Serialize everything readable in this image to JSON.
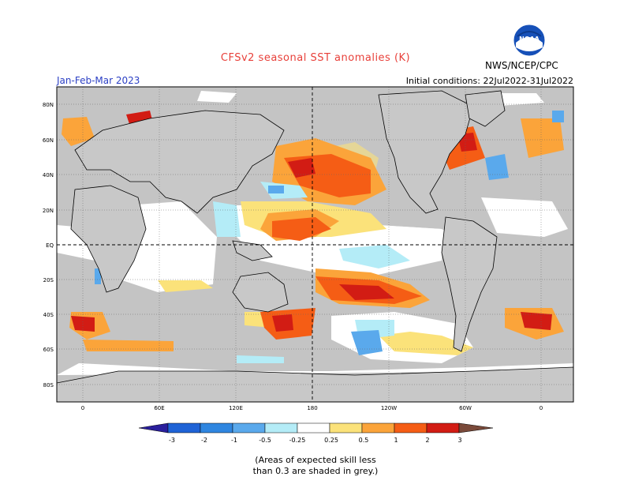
{
  "header": {
    "title": "CFSv2 seasonal SST anomalies (K)",
    "agency": "NWS/NCEP/CPC",
    "season": "Jan-Feb-Mar 2023",
    "initial_conditions": "Initial conditions: 22Jul2022-31Jul2022"
  },
  "logo": {
    "icon": "noaa-logo-icon",
    "text": "NOAA"
  },
  "axes": {
    "lat_labels": [
      "80N",
      "60N",
      "40N",
      "20N",
      "EQ",
      "20S",
      "40S",
      "60S",
      "80S"
    ],
    "lon_labels": [
      "0",
      "60E",
      "120E",
      "180",
      "120W",
      "60W",
      "0"
    ]
  },
  "colorbar": {
    "labels": [
      "-3",
      "-2",
      "-1",
      "-0.5",
      "-0.25",
      "0.25",
      "0.5",
      "1",
      "2",
      "3"
    ],
    "colors": [
      "#2a1f9c",
      "#1f63d6",
      "#2f86e0",
      "#5aa9ec",
      "#b4ecf7",
      "#ffffff",
      "#fbe27a",
      "#fba43a",
      "#f55d15",
      "#d21c14",
      "#970e0e",
      "#7a4a3a"
    ]
  },
  "footnote": {
    "line1": "(Areas of expected skill less",
    "line2": "than 0.3 are shaded in grey.)"
  }
}
